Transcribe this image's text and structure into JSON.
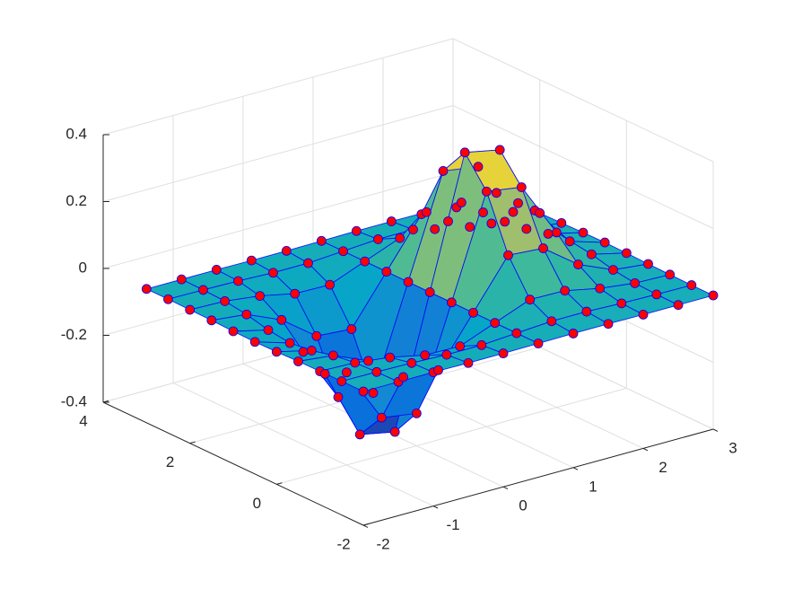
{
  "chart_data": {
    "type": "surface",
    "x": [
      -2,
      -1.5,
      -1,
      -0.5,
      0,
      0.5,
      1,
      1.5,
      2,
      2.5,
      3
    ],
    "y": [
      -2,
      -1.5,
      -1,
      -0.5,
      0,
      0.5,
      1,
      1.5,
      2,
      2.5,
      3
    ],
    "z": [
      [
        0,
        0,
        0,
        -0.001,
        -0.001,
        0,
        0.001,
        0.001,
        0,
        0,
        0
      ],
      [
        0,
        -0.001,
        -0.003,
        -0.007,
        -0.007,
        0,
        0.007,
        0.007,
        0.003,
        0.001,
        0
      ],
      [
        -0.001,
        -0.004,
        -0.017,
        -0.039,
        -0.041,
        0,
        0.041,
        0.039,
        0.017,
        0.004,
        0.001
      ],
      [
        -0.002,
        -0.013,
        -0.058,
        -0.135,
        -0.143,
        0,
        0.143,
        0.135,
        0.058,
        0.013,
        0.002
      ],
      [
        -0.004,
        -0.029,
        -0.123,
        -0.287,
        -0.303,
        0,
        0.303,
        0.287,
        0.123,
        0.029,
        0.004
      ],
      [
        -0.005,
        -0.037,
        -0.158,
        -0.368,
        -0.389,
        0,
        0.389,
        0.368,
        0.158,
        0.037,
        0.005
      ],
      [
        -0.004,
        -0.029,
        -0.123,
        -0.287,
        -0.303,
        0,
        0.303,
        0.287,
        0.123,
        0.029,
        0.004
      ],
      [
        -0.002,
        -0.013,
        -0.058,
        -0.135,
        -0.143,
        0,
        0.143,
        0.135,
        0.058,
        0.013,
        0.002
      ],
      [
        -0.001,
        -0.004,
        -0.017,
        -0.039,
        -0.041,
        0,
        0.041,
        0.039,
        0.017,
        0.004,
        0.001
      ],
      [
        0,
        -0.001,
        -0.003,
        -0.007,
        -0.007,
        0,
        0.007,
        0.007,
        0.003,
        0.001,
        0
      ],
      [
        0,
        0,
        0,
        -0.001,
        -0.001,
        0,
        0.001,
        0.001,
        0,
        0,
        0
      ]
    ],
    "xlim": [
      -2,
      3
    ],
    "ylim": [
      -2,
      4
    ],
    "zlim": [
      -0.4,
      0.4
    ],
    "xticks": [
      -2,
      -1,
      0,
      1,
      2,
      3
    ],
    "yticks": [
      -2,
      0,
      2,
      4
    ],
    "zticks": [
      -0.4,
      -0.2,
      0,
      0.2,
      0.4
    ],
    "grid": true,
    "marker_color": "#ff0000",
    "edge_color": "#0000ff"
  }
}
